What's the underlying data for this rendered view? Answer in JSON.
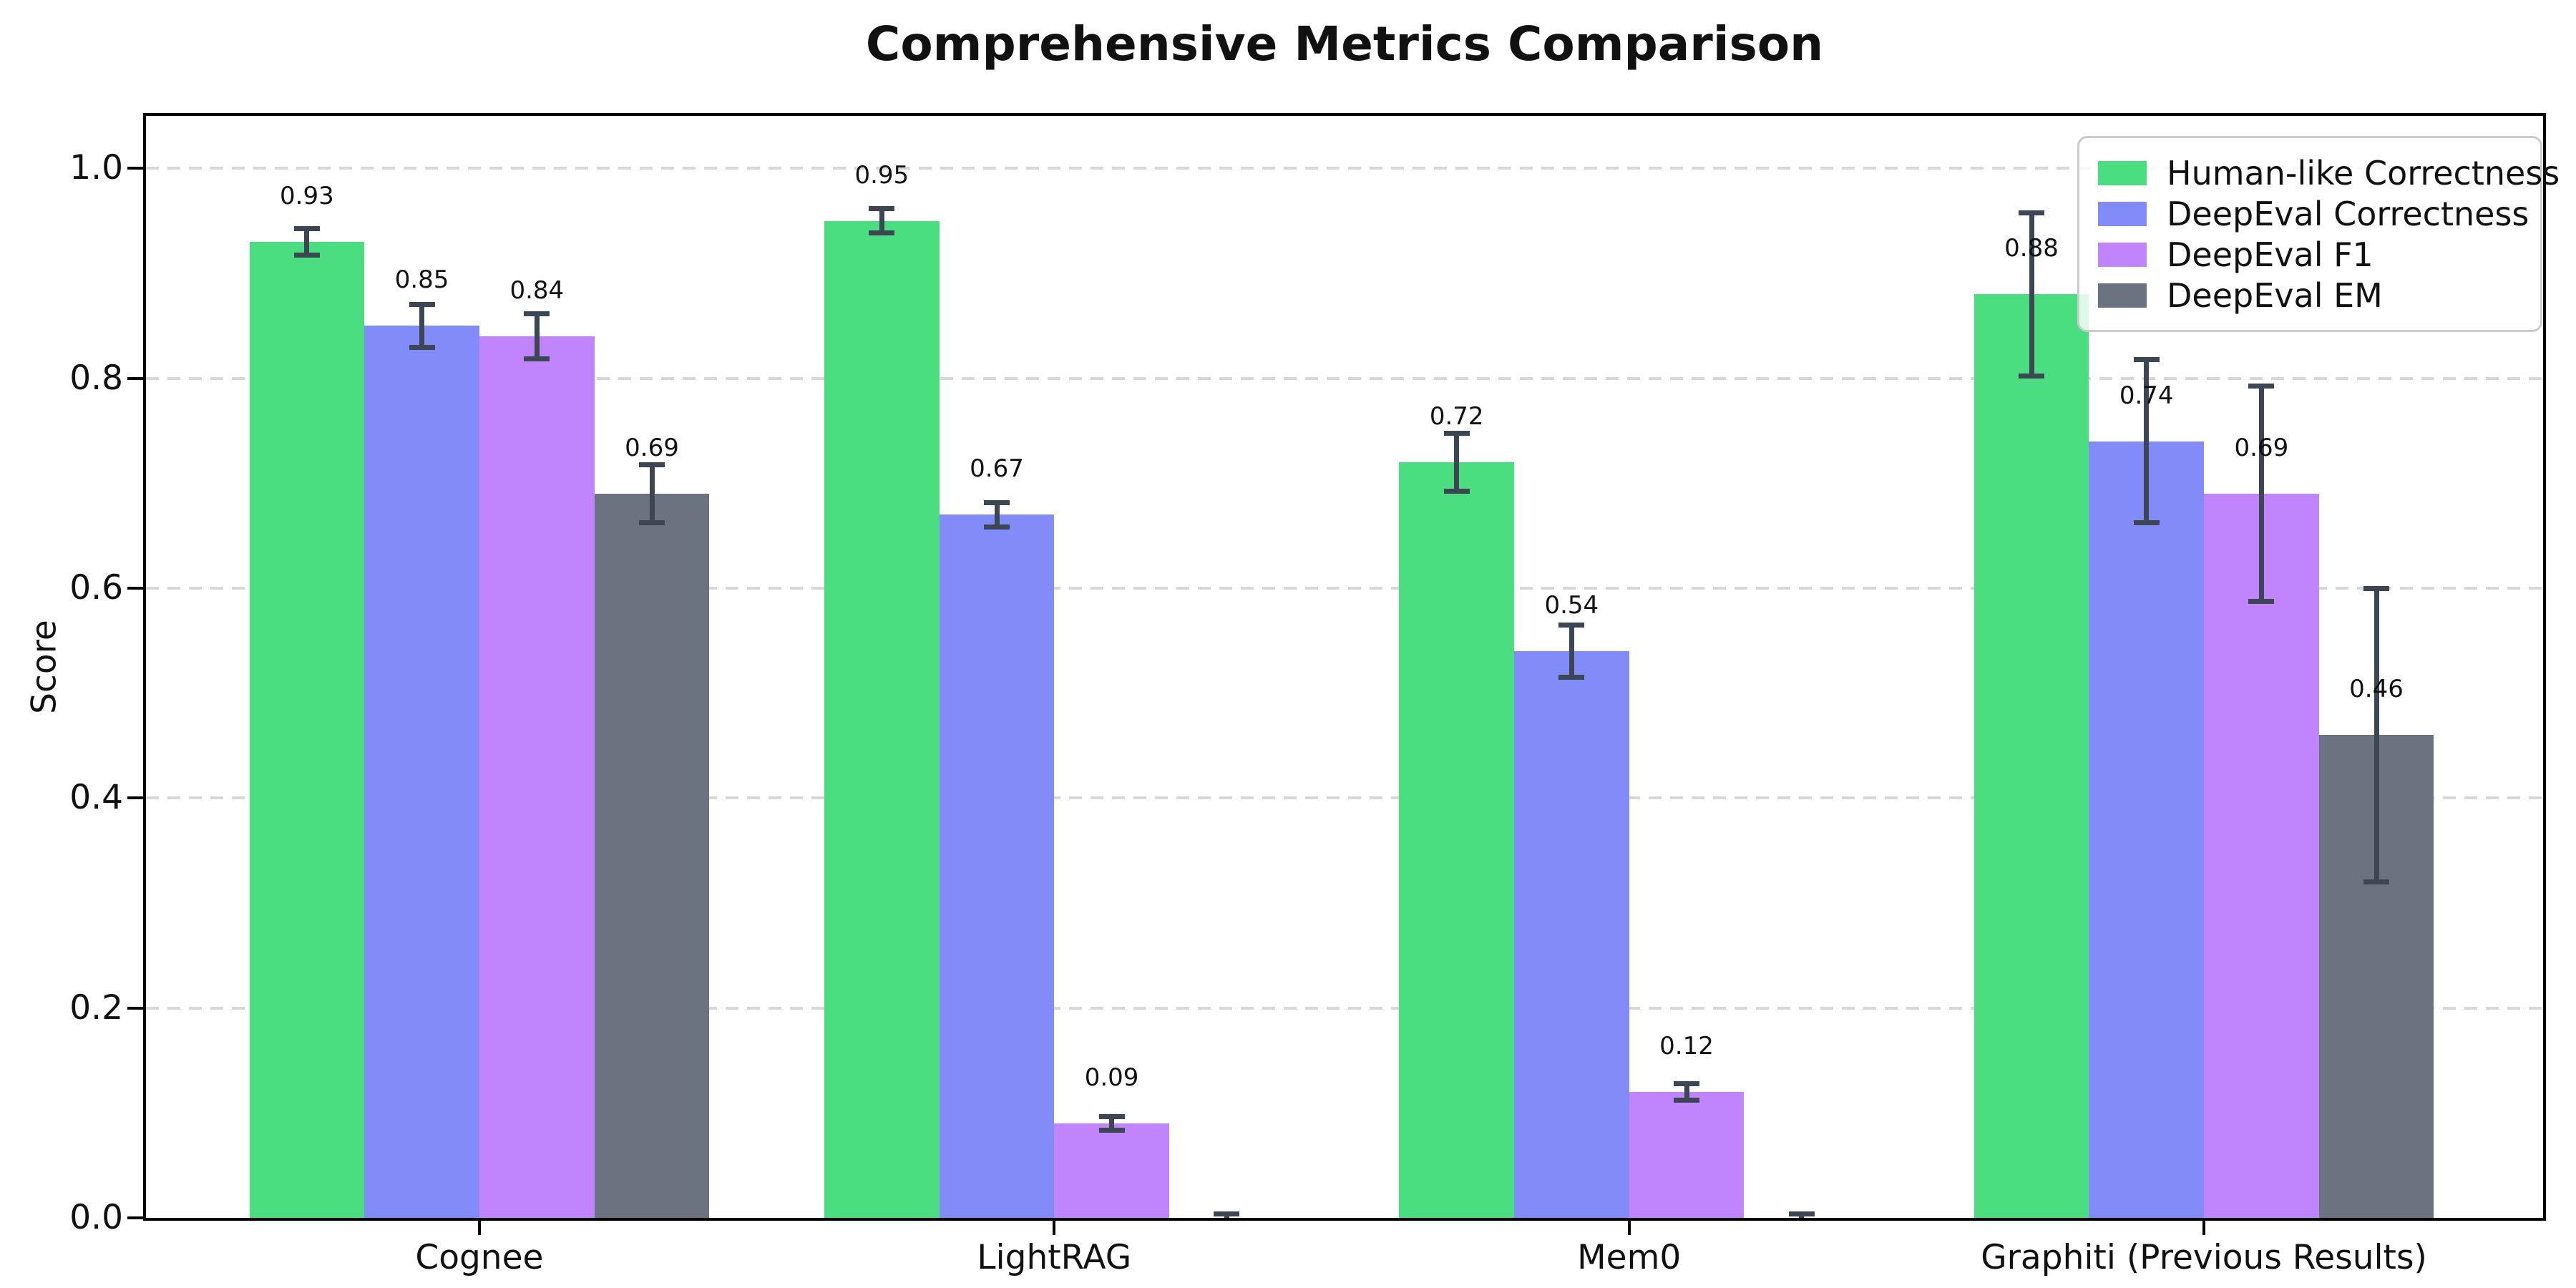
{
  "chart_data": {
    "type": "bar",
    "title": "Comprehensive Metrics Comparison",
    "xlabel": "",
    "ylabel": "Score",
    "categories": [
      "Cognee",
      "LightRAG",
      "Mem0",
      "Graphiti (Previous Results)"
    ],
    "series": [
      {
        "name": "Human-like Correctness",
        "color": "#4ade80",
        "values": [
          0.93,
          0.95,
          0.72,
          0.88
        ],
        "errors": [
          0.013,
          0.012,
          0.028,
          0.078
        ],
        "labels": [
          "0.93",
          "0.95",
          "0.72",
          "0.88"
        ]
      },
      {
        "name": "DeepEval Correctness",
        "color": "#818cf8",
        "values": [
          0.85,
          0.67,
          0.54,
          0.74
        ],
        "errors": [
          0.021,
          0.012,
          0.025,
          0.078
        ],
        "labels": [
          "0.85",
          "0.67",
          "0.54",
          "0.74"
        ]
      },
      {
        "name": "DeepEval F1",
        "color": "#c084fc",
        "values": [
          0.84,
          0.09,
          0.12,
          0.69
        ],
        "errors": [
          0.022,
          0.007,
          0.008,
          0.103
        ],
        "labels": [
          "0.84",
          "0.09",
          "0.12",
          "0.69"
        ]
      },
      {
        "name": "DeepEval EM",
        "color": "#6b7280",
        "values": [
          0.69,
          0.0,
          0.0,
          0.46
        ],
        "errors": [
          0.028,
          0.004,
          0.004,
          0.14
        ],
        "labels": [
          "0.69",
          "",
          "",
          "0.46"
        ]
      }
    ],
    "y_ticks": [
      0.0,
      0.2,
      0.4,
      0.6,
      0.8,
      1.0
    ],
    "y_tick_labels": [
      "0.0",
      "0.2",
      "0.4",
      "0.6",
      "0.8",
      "1.0"
    ],
    "ylim": [
      0,
      1.05
    ],
    "xlim": [
      -0.58,
      3.59
    ],
    "bar_width": 0.2,
    "group_offsets": [
      -0.3,
      -0.1,
      0.1,
      0.3
    ],
    "label_offset": 0.03,
    "grid": "horizontal-dashed",
    "legend_position": "upper-right",
    "colors": {
      "error_bar": "#3d4754",
      "grid": "#d7d7d7",
      "axis": "#000000",
      "background": "#ffffff"
    }
  }
}
